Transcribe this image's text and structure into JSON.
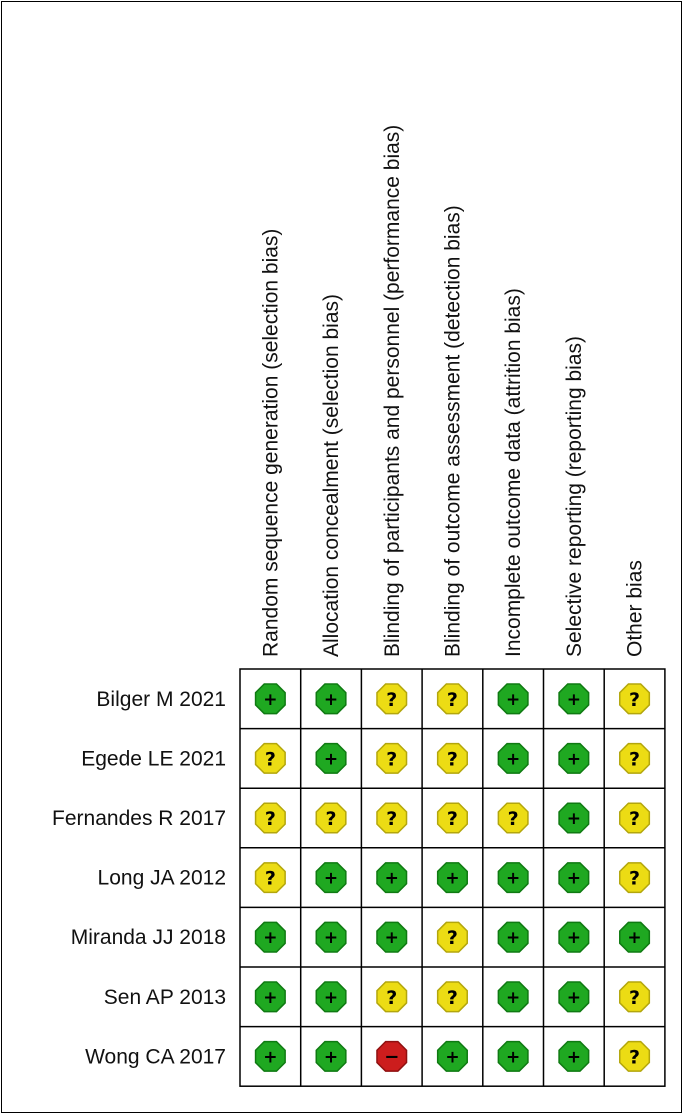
{
  "chart_data": {
    "type": "table",
    "title": "",
    "domains": [
      "Random sequence generation (selection bias)",
      "Allocation concealment (selection bias)",
      "Blinding of participants and personnel (performance bias)",
      "Blinding of outcome assessment (detection bias)",
      "Incomplete outcome data (attrition bias)",
      "Selective reporting (reporting bias)",
      "Other bias"
    ],
    "studies": [
      "Bilger M 2021",
      "Egede LE 2021",
      "Fernandes R 2017",
      "Long JA 2012",
      "Miranda JJ 2018",
      "Sen AP 2013",
      "Wong CA 2017"
    ],
    "judgements": [
      [
        "low",
        "low",
        "unclear",
        "unclear",
        "low",
        "low",
        "unclear"
      ],
      [
        "unclear",
        "low",
        "unclear",
        "unclear",
        "low",
        "low",
        "unclear"
      ],
      [
        "unclear",
        "unclear",
        "unclear",
        "unclear",
        "unclear",
        "low",
        "unclear"
      ],
      [
        "unclear",
        "low",
        "low",
        "low",
        "low",
        "low",
        "unclear"
      ],
      [
        "low",
        "low",
        "low",
        "unclear",
        "low",
        "low",
        "low"
      ],
      [
        "low",
        "low",
        "unclear",
        "unclear",
        "low",
        "low",
        "unclear"
      ],
      [
        "low",
        "low",
        "high",
        "low",
        "low",
        "low",
        "unclear"
      ]
    ],
    "symbols": {
      "low": "+",
      "unclear": "?",
      "high": "−"
    },
    "colors": {
      "low": "#1fa821",
      "unclear": "#ecdc14",
      "high": "#cc1d1d",
      "low_stroke": "#0f7a12",
      "unclear_stroke": "#b3a60c",
      "high_stroke": "#8f1010"
    }
  }
}
